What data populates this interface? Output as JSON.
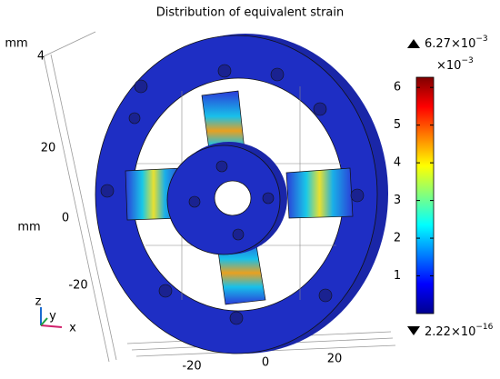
{
  "title": "Distribution of equivalent strain",
  "colorbar": {
    "max_label": {
      "text": "6.27×10",
      "exp": "−3"
    },
    "multiplier": {
      "text": "×10",
      "exp": "−3"
    },
    "min_label": {
      "text": "2.22×10",
      "exp": "−16"
    },
    "ylim": [
      0,
      6.27
    ],
    "yticks": [
      1,
      2,
      3,
      4,
      5,
      6
    ]
  },
  "axes": {
    "unit_labels": [
      "mm",
      "mm"
    ],
    "vertical_ticks": [
      "4",
      "20",
      "0",
      "-20"
    ],
    "horizontal_ticks": [
      "-20",
      "0",
      "20"
    ]
  },
  "triad": [
    "z",
    "y",
    "x"
  ]
}
